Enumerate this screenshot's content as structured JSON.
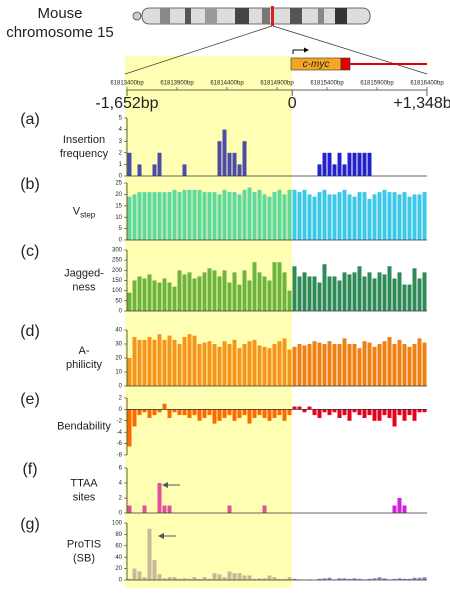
{
  "title": [
    "Mouse",
    "chromosome 15"
  ],
  "gene": "c-myc",
  "genome_axis": {
    "xlim": [
      -1652,
      1348
    ],
    "xticks": [
      {
        "value": -1652,
        "label": "-1,652bp"
      },
      0,
      {
        "value": 1348,
        "label": "+1,348bp"
      }
    ],
    "x2lim": [
      61813400,
      61816400
    ],
    "x2ticks": [
      {
        "value": 61813400,
        "label": "61813400bp"
      },
      {
        "value": 61813900,
        "label": "61813900bp"
      },
      {
        "value": 61814400,
        "label": "61814400bp"
      },
      {
        "value": 61814900,
        "label": "61814900bp"
      },
      {
        "value": 61815400,
        "label": "61815400bp"
      },
      {
        "value": 61815900,
        "label": "61815900bp"
      },
      {
        "value": 61816400,
        "label": "61816400bp"
      }
    ]
  },
  "chart_data": [
    {
      "type": "bar",
      "label": "(a)",
      "ylabel": [
        "Insertion",
        "frequency"
      ],
      "ylim": [
        0,
        5
      ],
      "yticks": [
        0,
        1,
        2,
        3,
        4,
        5
      ],
      "colors": [
        "#4b4ba8",
        "#2222cc"
      ],
      "values": [
        2,
        0,
        1,
        0,
        0,
        1,
        2,
        0,
        0,
        0,
        0,
        1,
        0,
        0,
        0,
        0,
        0,
        0,
        3,
        4,
        2,
        2,
        1,
        3,
        0,
        0,
        0,
        0,
        0,
        0,
        0,
        0,
        0,
        0,
        0,
        0,
        0,
        0,
        1,
        2,
        2,
        1,
        2,
        1,
        2,
        2,
        2,
        2,
        2,
        0,
        0,
        0,
        0,
        0,
        0,
        0,
        0,
        0,
        0,
        0
      ]
    },
    {
      "type": "bar",
      "label": "(b)",
      "ylabel": [
        "V"
      ],
      "ylabel_sub": "step",
      "ylim": [
        0,
        25
      ],
      "yticks": [
        0,
        5,
        10,
        15,
        20,
        25
      ],
      "colors": [
        "#5fd9a0",
        "#3cc8e8"
      ],
      "values": [
        19,
        20,
        21,
        21,
        21,
        21,
        21,
        21,
        21,
        22,
        21,
        22,
        22,
        22,
        22,
        21,
        21,
        21,
        20,
        22,
        21,
        21,
        20,
        22,
        23,
        21,
        22,
        20,
        19,
        21,
        22,
        20,
        22,
        22,
        21,
        22,
        20,
        19,
        21,
        22,
        20,
        20,
        21,
        22,
        20,
        19,
        21,
        21,
        18,
        20,
        21,
        22,
        21,
        21,
        20,
        21,
        19,
        20,
        20,
        21
      ]
    },
    {
      "type": "bar",
      "label": "(c)",
      "ylabel": [
        "Jagged-",
        "ness"
      ],
      "ylim": [
        0,
        300
      ],
      "yticks": [
        0,
        50,
        100,
        150,
        200,
        250,
        300
      ],
      "colors": [
        "#6db33f",
        "#2e8b57"
      ],
      "values": [
        90,
        150,
        170,
        160,
        180,
        150,
        140,
        160,
        140,
        120,
        200,
        180,
        190,
        160,
        170,
        190,
        210,
        200,
        170,
        200,
        140,
        190,
        130,
        200,
        150,
        240,
        190,
        170,
        150,
        240,
        240,
        190,
        100,
        220,
        170,
        190,
        170,
        170,
        140,
        230,
        170,
        170,
        150,
        190,
        180,
        190,
        220,
        170,
        190,
        160,
        190,
        180,
        220,
        160,
        190,
        130,
        130,
        210,
        160,
        190
      ]
    },
    {
      "type": "bar",
      "label": "(d)",
      "ylabel": [
        "A-",
        "philicity"
      ],
      "ylim": [
        0,
        40
      ],
      "yticks": [
        0,
        10,
        20,
        30,
        40
      ],
      "colors": [
        "#f7941d",
        "#f08010"
      ],
      "values": [
        20,
        35,
        33,
        33,
        35,
        33,
        37,
        33,
        36,
        33,
        30,
        35,
        37,
        36,
        30,
        31,
        32,
        30,
        28,
        32,
        30,
        33,
        27,
        30,
        32,
        33,
        29,
        28,
        27,
        30,
        32,
        34,
        26,
        28,
        30,
        29,
        30,
        32,
        31,
        30,
        32,
        30,
        30,
        34,
        30,
        30,
        27,
        32,
        31,
        28,
        30,
        32,
        35,
        30,
        33,
        30,
        28,
        30,
        34,
        31
      ]
    },
    {
      "type": "bar",
      "label": "(e)",
      "ylabel": [
        "Bendability"
      ],
      "ylim": [
        -8,
        2
      ],
      "yticks": [
        -8,
        -6,
        -4,
        -2,
        0,
        2
      ],
      "colors": [
        "#ff6a00",
        "#e8001c"
      ],
      "values": [
        -6.5,
        -3,
        -1,
        -0.5,
        -1.5,
        -1,
        -0.5,
        1,
        -1.5,
        -0.5,
        -1,
        -1,
        -1.5,
        -1,
        -2,
        -1.5,
        -1,
        -2.5,
        -2,
        -1.5,
        -1,
        -2,
        -1.5,
        -1,
        -2.5,
        -1.5,
        -1,
        -1.5,
        -2,
        -1.5,
        -1,
        -2,
        -1,
        0.5,
        0.5,
        -0.5,
        0.5,
        -1,
        -1.5,
        -0.5,
        -1,
        -0.5,
        -1.5,
        -1,
        -2,
        -0.5,
        -1,
        -1.5,
        -1,
        -2,
        -2,
        -1,
        -1.5,
        -3,
        -1,
        -2,
        -1,
        -2,
        -0.5,
        -0.5
      ]
    },
    {
      "type": "bar",
      "label": "(f)",
      "ylabel": [
        "TTAA",
        "sites"
      ],
      "ylim": [
        0,
        6
      ],
      "yticks": [
        0,
        2,
        4,
        6
      ],
      "colors": [
        "#e0509a",
        "#d020e0"
      ],
      "values": [
        1,
        0,
        0,
        1,
        0,
        0,
        4,
        1,
        1,
        0,
        0,
        0,
        0,
        0,
        0,
        0,
        0,
        0,
        0,
        0,
        1,
        0,
        0,
        0,
        0,
        0,
        0,
        1,
        0,
        0,
        0,
        0,
        0,
        0,
        0,
        0,
        0,
        0,
        0,
        0,
        0,
        0,
        0,
        0,
        0,
        0,
        0,
        0,
        0,
        0,
        0,
        0,
        0,
        1,
        2,
        1,
        0,
        0,
        0,
        0
      ]
    },
    {
      "type": "bar",
      "label": "(g)",
      "ylabel": [
        "ProTIS",
        "(SB)"
      ],
      "ylim": [
        0,
        100
      ],
      "yticks": [
        0,
        20,
        40,
        60,
        80,
        100
      ],
      "colors": [
        "#c8b89a",
        "#9a80c8"
      ],
      "values": [
        2,
        20,
        15,
        5,
        90,
        35,
        10,
        3,
        5,
        5,
        2,
        3,
        2,
        5,
        2,
        5,
        2,
        12,
        10,
        5,
        15,
        12,
        12,
        8,
        8,
        2,
        3,
        3,
        8,
        5,
        2,
        2,
        5,
        2,
        1,
        0,
        1,
        0,
        2,
        3,
        4,
        1,
        3,
        3,
        2,
        3,
        2,
        1,
        2,
        3,
        5,
        3,
        1,
        2,
        3,
        2,
        2,
        4,
        4,
        5
      ]
    }
  ]
}
